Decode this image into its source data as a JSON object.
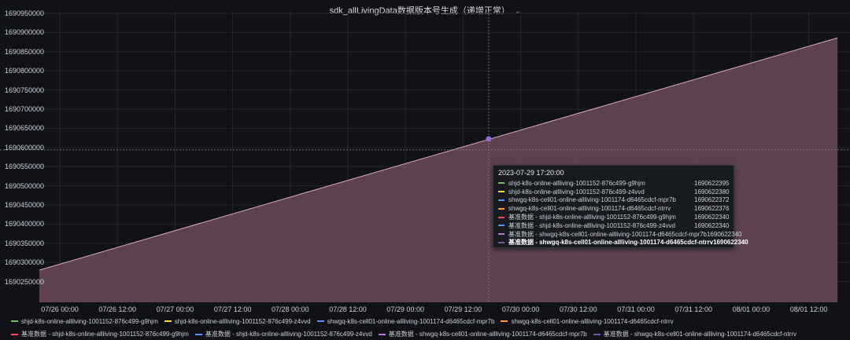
{
  "panel": {
    "title": "sdk_allLivingData数据版本号生成（递增正常）"
  },
  "chart_data": {
    "type": "area",
    "y_ticks": [
      "1690950000",
      "1690900000",
      "1690850000",
      "1690800000",
      "1690750000",
      "1690700000",
      "1690650000",
      "1690600000",
      "1690550000",
      "1690500000",
      "1690450000",
      "1690400000",
      "1690350000",
      "1690300000",
      "1690250000"
    ],
    "x_ticks": [
      "07/26 00:00",
      "07/26 12:00",
      "07/27 00:00",
      "07/27 12:00",
      "07/28 00:00",
      "07/28 12:00",
      "07/29 00:00",
      "07/29 12:00",
      "07/30 00:00",
      "07/30 12:00",
      "07/31 00:00",
      "07/31 12:00",
      "08/01 00:00",
      "08/01 12:00"
    ],
    "ylim": [
      1690230000,
      1690960000
    ],
    "series_start": {
      "x": "07/25 18:00",
      "y": 1690280000
    },
    "series_end": {
      "x": "08/01 18:00",
      "y": 1690886000
    },
    "hover_point": {
      "x": "07/29 17:20",
      "y": 1690622340
    },
    "fill_color": "#6b4a5c",
    "line_color": "#d7a9b8"
  },
  "tooltip": {
    "time": "2023-07-29 17:20:00",
    "rows": [
      {
        "name": "shjd-k8s-online-allliving-1001152-876c499-g9hjm",
        "value": "1690622395",
        "color": "#73bf69"
      },
      {
        "name": "shjd-k8s-online-allliving-1001152-876c499-z4vvd",
        "value": "1690622380",
        "color": "#fade2a"
      },
      {
        "name": "shwgq-k8s-cell01-online-allliving-1001174-d6465cdcf-mpr7b",
        "value": "1690622372",
        "color": "#5794f2"
      },
      {
        "name": "shwgq-k8s-cell01-online-allliving-1001174-d6465cdcf-ntrrv",
        "value": "1690622376",
        "color": "#ff9830"
      },
      {
        "name": "基准数据 - shjd-k8s-online-allliving-1001152-876c499-g9hjm",
        "value": "1690622340",
        "color": "#f2495c"
      },
      {
        "name": "基准数据 - shjd-k8s-online-allliving-1001152-876c499-z4vvd",
        "value": "1690622340",
        "color": "#5794f2"
      },
      {
        "name": "基准数据 - shwgq-k8s-cell01-online-allliving-1001174-d6465cdcf-mpr7b",
        "value": "1690622340",
        "color": "#b877d9"
      },
      {
        "name": "基准数据 - shwgq-k8s-cell01-online-allliving-1001174-d6465cdcf-ntrrv",
        "value": "1690622340",
        "color": "#705da0",
        "bold": true
      }
    ]
  },
  "legend": [
    {
      "name": "shjd-k8s-online-allliving-1001152-876c499-g9hjm",
      "color": "#73bf69"
    },
    {
      "name": "shjd-k8s-online-allliving-1001152-876c499-z4vvd",
      "color": "#fade2a"
    },
    {
      "name": "shwgq-k8s-cell01-online-allliving-1001174-d6465cdcf-mpr7b",
      "color": "#5794f2"
    },
    {
      "name": "shwgq-k8s-cell01-online-allliving-1001174-d6465cdcf-ntrrv",
      "color": "#ff9830"
    },
    {
      "name": "基准数据 - shjd-k8s-online-allliving-1001152-876c499-g9hjm",
      "color": "#f2495c"
    },
    {
      "name": "基准数据 - shjd-k8s-online-allliving-1001152-876c499-z4vvd",
      "color": "#5794f2"
    },
    {
      "name": "基准数据 - shwgq-k8s-cell01-online-allliving-1001174-d6465cdcf-mpr7b",
      "color": "#b877d9"
    },
    {
      "name": "基准数据 - shwgq-k8s-cell01-online-allliving-1001174-d6465cdcf-ntrrv",
      "color": "#705da0"
    }
  ]
}
